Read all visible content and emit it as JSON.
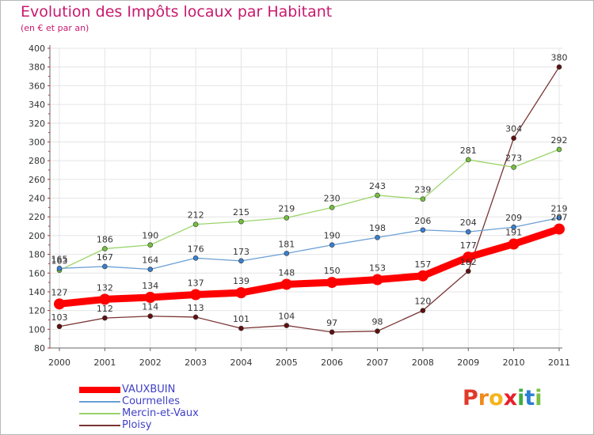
{
  "header": {
    "title": "Evolution des Impôts locaux par Habitant",
    "subtitle": "(en € et par an)"
  },
  "logo": {
    "text": "Proxiti",
    "letters": [
      {
        "ch": "P",
        "color": "#e03a2a"
      },
      {
        "ch": "r",
        "color": "#f08a1c"
      },
      {
        "ch": "o",
        "color": "#f4b41a"
      },
      {
        "ch": "x",
        "color": "#e8202a"
      },
      {
        "ch": "i",
        "color": "#3fae3f"
      },
      {
        "ch": "t",
        "color": "#2a7fd4"
      },
      {
        "ch": "i",
        "color": "#7ac143"
      }
    ]
  },
  "chart_data": {
    "type": "line",
    "title": "Evolution des Impôts locaux par Habitant",
    "subtitle": "(en € et par an)",
    "xlabel": "",
    "ylabel": "",
    "x": [
      "2000",
      "2001",
      "2002",
      "2003",
      "2004",
      "2005",
      "2006",
      "2007",
      "2008",
      "2009",
      "2010",
      "2011"
    ],
    "ylim": [
      80,
      400
    ],
    "yticks": [
      80,
      100,
      120,
      140,
      160,
      180,
      200,
      220,
      240,
      260,
      280,
      300,
      320,
      340,
      360,
      380,
      400
    ],
    "grid": true,
    "legend_position": "bottom-left",
    "series": [
      {
        "name": "VAUXBUIN",
        "color": "#ff0000",
        "point_color": "#ff0000",
        "values": [
          127,
          132,
          134,
          137,
          139,
          148,
          150,
          153,
          157,
          177,
          191,
          207
        ],
        "labels": [
          "127",
          "132",
          "134",
          "137",
          "139",
          "148",
          "150",
          "153",
          "157",
          "177",
          "191",
          "207"
        ]
      },
      {
        "name": "Courmelles",
        "color": "#6b9fd4",
        "point_color": "#3a7fd0",
        "values": [
          165,
          167,
          164,
          176,
          173,
          181,
          190,
          198,
          206,
          204,
          209,
          219
        ],
        "labels": [
          "165",
          "167",
          "164",
          "176",
          "173",
          "181",
          "190",
          "198",
          "206",
          "204",
          "209",
          "219"
        ]
      },
      {
        "name": "Mercin-et-Vaux",
        "color": "#9ad46a",
        "point_color": "#72c040",
        "values": [
          163,
          186,
          190,
          212,
          215,
          219,
          230,
          243,
          239,
          281,
          273,
          292
        ],
        "labels": [
          "163",
          "186",
          "190",
          "212",
          "215",
          "219",
          "230",
          "243",
          "239",
          "281",
          "273",
          "292"
        ]
      },
      {
        "name": "Ploisy",
        "color": "#7a3434",
        "point_color": "#601010",
        "values": [
          103,
          112,
          114,
          113,
          101,
          104,
          97,
          98,
          120,
          162,
          304,
          380
        ],
        "labels": [
          "103",
          "112",
          "114",
          "113",
          "101",
          "104",
          "97",
          "98",
          "120",
          "162",
          "304",
          "380"
        ]
      }
    ]
  }
}
